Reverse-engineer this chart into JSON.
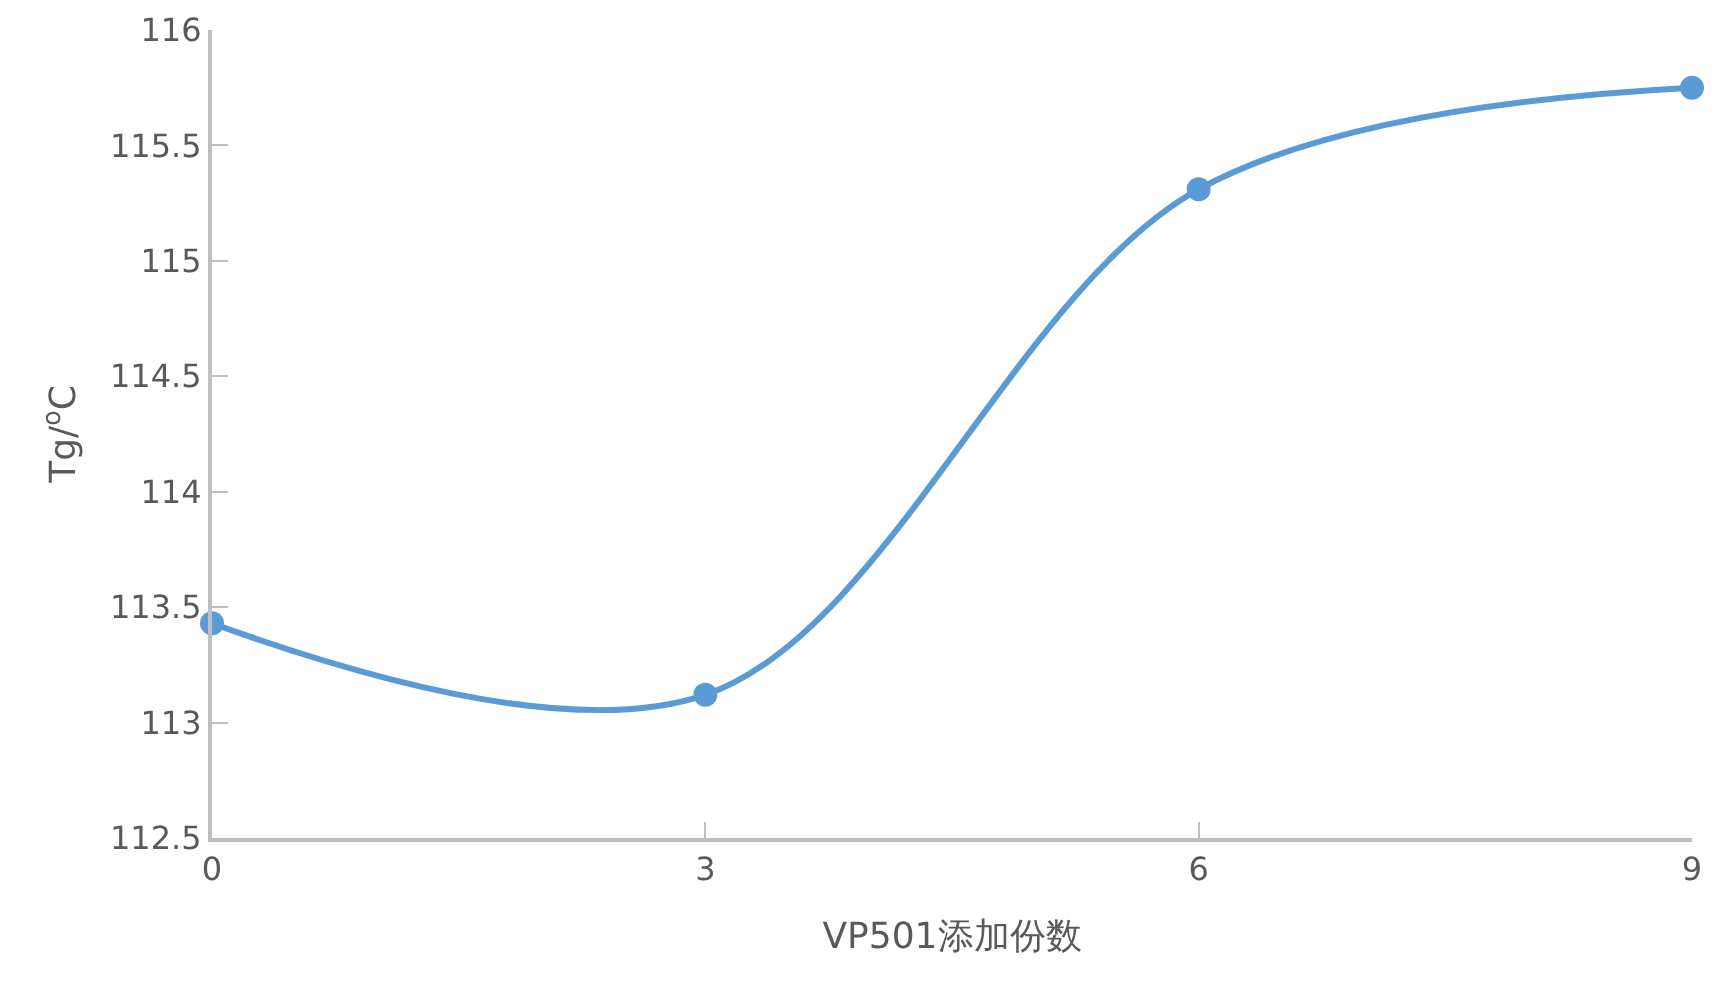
{
  "chart_data": {
    "type": "line",
    "xlabel": "VP501添加份数",
    "ylabel": "Tg/$^{o}$C",
    "x": [
      0,
      3,
      6,
      9
    ],
    "series": [
      {
        "color": "#5b9bd5",
        "values": [
          113.43,
          113.12,
          115.31,
          115.75
        ]
      }
    ],
    "xlim": [
      0,
      9
    ],
    "xticks": [
      0,
      3,
      6,
      9
    ],
    "ylim": [
      112.5,
      116
    ],
    "yticks": [
      112.5,
      113,
      113.5,
      114,
      114.5,
      115,
      115.5,
      116
    ],
    "legend": false,
    "marker": "circle",
    "line_style": "solid"
  }
}
